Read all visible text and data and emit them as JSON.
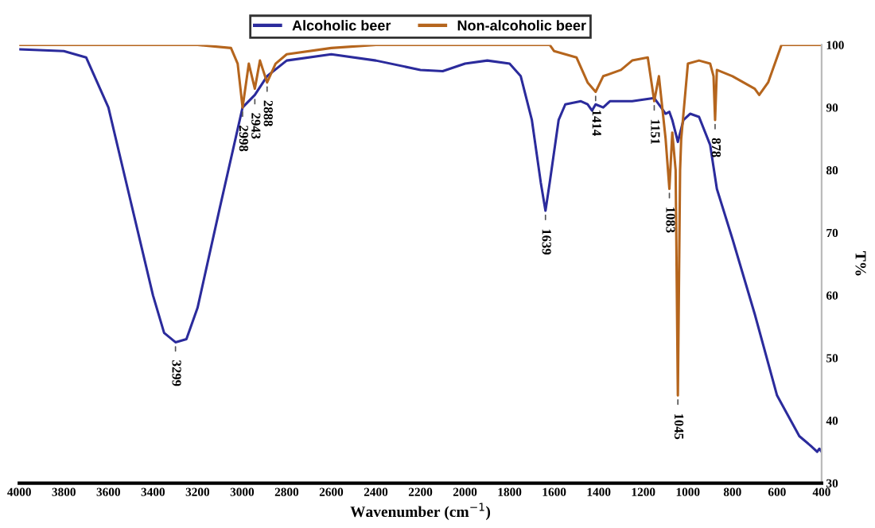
{
  "chart_data": {
    "type": "line",
    "xlabel": "Wavenumber (cm$^{−1}$)",
    "ylabel": "T%",
    "xlim": [
      4000,
      400
    ],
    "xticks": [
      4000,
      3800,
      3600,
      3400,
      3200,
      3000,
      2800,
      2600,
      2400,
      2200,
      2000,
      1800,
      1600,
      1400,
      1200,
      1000,
      800,
      600,
      400
    ],
    "ylim": [
      30,
      100
    ],
    "yticks": [
      30,
      40,
      50,
      60,
      70,
      80,
      90,
      100
    ],
    "grid": false,
    "legend": "top",
    "marker": "none",
    "line_style": "solid",
    "series": [
      {
        "name": "Alcoholic beer",
        "color": "#2b2b9c",
        "x": [
          4000,
          3800,
          3700,
          3600,
          3500,
          3400,
          3350,
          3299,
          3250,
          3200,
          3100,
          2998,
          2943,
          2888,
          2800,
          2600,
          2400,
          2200,
          2100,
          2000,
          1900,
          1800,
          1750,
          1700,
          1660,
          1639,
          1620,
          1580,
          1550,
          1480,
          1450,
          1430,
          1414,
          1380,
          1350,
          1250,
          1151,
          1120,
          1100,
          1083,
          1070,
          1045,
          1020,
          990,
          950,
          900,
          870,
          800,
          700,
          600,
          500,
          450,
          420,
          410,
          400
        ],
        "values": [
          99.3,
          99,
          98,
          90,
          75,
          60,
          54,
          52.5,
          53,
          58,
          74,
          90,
          92,
          95,
          97.5,
          98.5,
          97.5,
          96,
          95.8,
          97,
          97.5,
          97,
          95,
          88,
          78,
          73.5,
          78,
          88,
          90.5,
          91,
          90.5,
          89.5,
          90.5,
          90,
          91,
          91,
          91.5,
          90,
          89,
          89.3,
          88,
          84.5,
          88,
          89,
          88.5,
          84,
          77,
          69,
          57,
          44,
          37.5,
          36,
          35,
          35.5,
          35
        ]
      },
      {
        "name": "Non-alcoholic beer",
        "color": "#b5651d",
        "x": [
          4000,
          3200,
          3050,
          3020,
          2998,
          2970,
          2943,
          2920,
          2888,
          2850,
          2800,
          2600,
          2400,
          2200,
          1800,
          1620,
          1600,
          1500,
          1450,
          1414,
          1380,
          1300,
          1250,
          1180,
          1151,
          1130,
          1100,
          1083,
          1070,
          1055,
          1045,
          1035,
          1030,
          1000,
          950,
          900,
          885,
          878,
          870,
          800,
          700,
          680,
          640,
          600,
          580,
          400
        ],
        "values": [
          100,
          100,
          99.5,
          97,
          90,
          97,
          93,
          97.5,
          94,
          97,
          98.5,
          99.5,
          100,
          100,
          100,
          100,
          99,
          98,
          94,
          92.5,
          95,
          96,
          97.5,
          98,
          91,
          95,
          85,
          77,
          86,
          80,
          44,
          80,
          85,
          97,
          97.5,
          97,
          95,
          88,
          96,
          95,
          93,
          92,
          94,
          98,
          100,
          100
        ]
      }
    ],
    "annotations": [
      {
        "text": "3299",
        "x": 3299,
        "y": 52.5
      },
      {
        "text": "2998",
        "x": 2998,
        "y": 90
      },
      {
        "text": "2943",
        "x": 2943,
        "y": 92
      },
      {
        "text": "2888",
        "x": 2888,
        "y": 94
      },
      {
        "text": "1639",
        "x": 1639,
        "y": 73.5
      },
      {
        "text": "1414",
        "x": 1414,
        "y": 92.5
      },
      {
        "text": "1151",
        "x": 1151,
        "y": 91
      },
      {
        "text": "1083",
        "x": 1083,
        "y": 77
      },
      {
        "text": "1045",
        "x": 1045,
        "y": 44
      },
      {
        "text": "878",
        "x": 878,
        "y": 88
      }
    ]
  }
}
